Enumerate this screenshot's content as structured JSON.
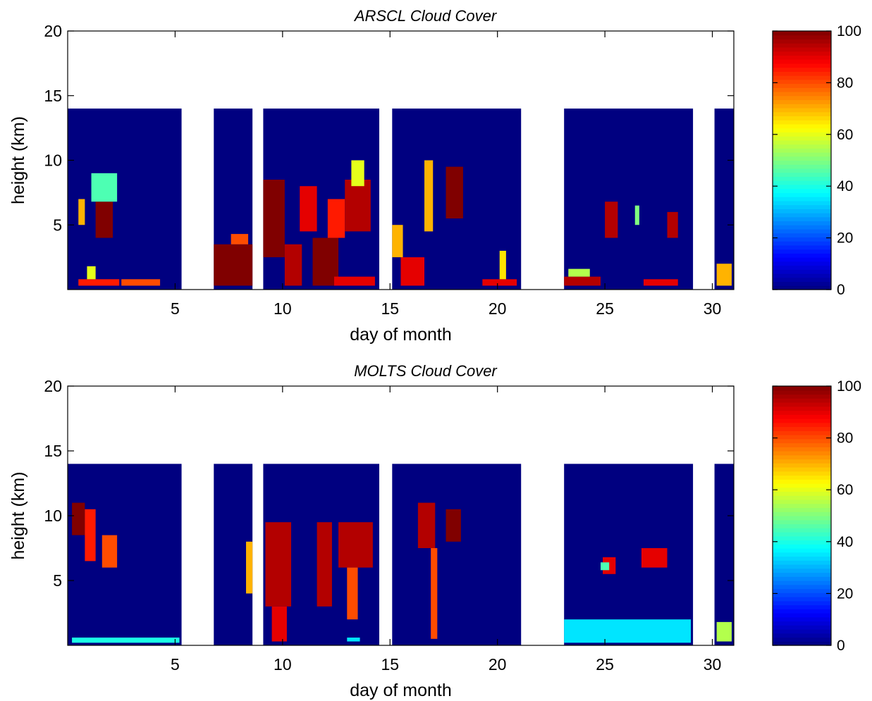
{
  "chart_data": [
    {
      "type": "heatmap",
      "title": "ARSCL Cloud Cover",
      "xlabel": "day of month",
      "ylabel": "height (km)",
      "xlim": [
        0,
        31
      ],
      "ylim": [
        0,
        20
      ],
      "xticks": [
        5,
        10,
        15,
        20,
        25,
        30
      ],
      "yticks": [
        5,
        10,
        15,
        20
      ],
      "grid": false,
      "colorbar": {
        "colormap": "jet",
        "range": [
          0,
          100
        ],
        "ticks": [
          0,
          20,
          40,
          60,
          80,
          100
        ]
      },
      "data_top_km": 14,
      "valid_day_ranges": [
        [
          0,
          5.3
        ],
        [
          6.8,
          8.6
        ],
        [
          9.1,
          14.5
        ],
        [
          15.1,
          21.1
        ],
        [
          23.1,
          29.1
        ],
        [
          30.1,
          31
        ]
      ],
      "background_value": 0,
      "cloud_patches": [
        {
          "day": [
            0.5,
            2.4
          ],
          "height": [
            0.3,
            0.8
          ],
          "value": 85
        },
        {
          "day": [
            2.5,
            4.3
          ],
          "height": [
            0.3,
            0.8
          ],
          "value": 80
        },
        {
          "day": [
            0.9,
            1.3
          ],
          "height": [
            0.8,
            1.8
          ],
          "value": 60
        },
        {
          "day": [
            1.3,
            2.1
          ],
          "height": [
            4.0,
            6.8
          ],
          "value": 100
        },
        {
          "day": [
            1.1,
            2.3
          ],
          "height": [
            6.8,
            9.0
          ],
          "value": 45
        },
        {
          "day": [
            0.5,
            0.8
          ],
          "height": [
            5.0,
            7.0
          ],
          "value": 70
        },
        {
          "day": [
            6.8,
            8.6
          ],
          "height": [
            0.3,
            3.5
          ],
          "value": 100
        },
        {
          "day": [
            7.6,
            8.4
          ],
          "height": [
            3.5,
            4.3
          ],
          "value": 80
        },
        {
          "day": [
            9.1,
            10.1
          ],
          "height": [
            2.5,
            8.5
          ],
          "value": 100
        },
        {
          "day": [
            10.1,
            10.9
          ],
          "height": [
            0.3,
            3.5
          ],
          "value": 95
        },
        {
          "day": [
            10.8,
            11.6
          ],
          "height": [
            4.5,
            8.0
          ],
          "value": 90
        },
        {
          "day": [
            11.4,
            12.6
          ],
          "height": [
            0.3,
            4.0
          ],
          "value": 100
        },
        {
          "day": [
            12.1,
            12.9
          ],
          "height": [
            4.0,
            7.0
          ],
          "value": 85
        },
        {
          "day": [
            12.9,
            14.1
          ],
          "height": [
            4.5,
            8.5
          ],
          "value": 95
        },
        {
          "day": [
            13.2,
            13.8
          ],
          "height": [
            8.0,
            10.0
          ],
          "value": 60
        },
        {
          "day": [
            12.4,
            14.3
          ],
          "height": [
            0.3,
            1.0
          ],
          "value": 90
        },
        {
          "day": [
            15.5,
            16.6
          ],
          "height": [
            0.3,
            2.5
          ],
          "value": 90
        },
        {
          "day": [
            15.1,
            15.6
          ],
          "height": [
            2.5,
            5.0
          ],
          "value": 70
        },
        {
          "day": [
            16.6,
            17.0
          ],
          "height": [
            4.5,
            10.0
          ],
          "value": 70
        },
        {
          "day": [
            17.6,
            18.4
          ],
          "height": [
            5.5,
            9.5
          ],
          "value": 100
        },
        {
          "day": [
            19.3,
            20.9
          ],
          "height": [
            0.3,
            0.8
          ],
          "value": 90
        },
        {
          "day": [
            20.1,
            20.4
          ],
          "height": [
            0.8,
            3.0
          ],
          "value": 65
        },
        {
          "day": [
            23.1,
            24.8
          ],
          "height": [
            0.3,
            1.0
          ],
          "value": 95
        },
        {
          "day": [
            23.3,
            24.3
          ],
          "height": [
            1.0,
            1.6
          ],
          "value": 55
        },
        {
          "day": [
            25.0,
            25.6
          ],
          "height": [
            4.0,
            6.8
          ],
          "value": 95
        },
        {
          "day": [
            26.8,
            28.4
          ],
          "height": [
            0.3,
            0.8
          ],
          "value": 90
        },
        {
          "day": [
            27.9,
            28.4
          ],
          "height": [
            4.0,
            6.0
          ],
          "value": 95
        },
        {
          "day": [
            26.4,
            26.6
          ],
          "height": [
            5.0,
            6.5
          ],
          "value": 50
        },
        {
          "day": [
            30.2,
            30.9
          ],
          "height": [
            0.3,
            2.0
          ],
          "value": 70
        }
      ]
    },
    {
      "type": "heatmap",
      "title": "MOLTS Cloud Cover",
      "xlabel": "day of month",
      "ylabel": "height (km)",
      "xlim": [
        0,
        31
      ],
      "ylim": [
        0,
        20
      ],
      "xticks": [
        5,
        10,
        15,
        20,
        25,
        30
      ],
      "yticks": [
        5,
        10,
        15,
        20
      ],
      "grid": false,
      "colorbar": {
        "colormap": "jet",
        "range": [
          0,
          100
        ],
        "ticks": [
          0,
          20,
          40,
          60,
          80,
          100
        ]
      },
      "data_top_km": 14,
      "valid_day_ranges": [
        [
          0,
          5.3
        ],
        [
          6.8,
          8.6
        ],
        [
          9.1,
          14.5
        ],
        [
          15.1,
          21.1
        ],
        [
          23.1,
          29.1
        ],
        [
          30.1,
          31
        ]
      ],
      "background_value": 0,
      "cloud_patches": [
        {
          "day": [
            0.2,
            0.8
          ],
          "height": [
            8.5,
            11.0
          ],
          "value": 100
        },
        {
          "day": [
            0.8,
            1.3
          ],
          "height": [
            6.5,
            10.5
          ],
          "value": 85
        },
        {
          "day": [
            1.6,
            2.3
          ],
          "height": [
            6.0,
            8.5
          ],
          "value": 80
        },
        {
          "day": [
            0.2,
            5.2
          ],
          "height": [
            0.2,
            0.6
          ],
          "value": 40
        },
        {
          "day": [
            8.3,
            8.6
          ],
          "height": [
            4.0,
            8.0
          ],
          "value": 70
        },
        {
          "day": [
            9.2,
            10.4
          ],
          "height": [
            3.0,
            9.5
          ],
          "value": 95
        },
        {
          "day": [
            9.5,
            10.2
          ],
          "height": [
            0.3,
            3.0
          ],
          "value": 90
        },
        {
          "day": [
            11.6,
            12.3
          ],
          "height": [
            3.0,
            9.5
          ],
          "value": 95
        },
        {
          "day": [
            12.6,
            14.2
          ],
          "height": [
            6.0,
            9.5
          ],
          "value": 95
        },
        {
          "day": [
            13.0,
            13.5
          ],
          "height": [
            2.0,
            6.0
          ],
          "value": 80
        },
        {
          "day": [
            13.0,
            13.6
          ],
          "height": [
            0.3,
            0.6
          ],
          "value": 35
        },
        {
          "day": [
            16.3,
            17.1
          ],
          "height": [
            7.5,
            11.0
          ],
          "value": 95
        },
        {
          "day": [
            17.6,
            18.3
          ],
          "height": [
            8.0,
            10.5
          ],
          "value": 100
        },
        {
          "day": [
            16.9,
            17.2
          ],
          "height": [
            0.5,
            7.5
          ],
          "value": 80
        },
        {
          "day": [
            23.1,
            29.0
          ],
          "height": [
            0.2,
            2.0
          ],
          "value": 35
        },
        {
          "day": [
            24.9,
            25.5
          ],
          "height": [
            5.5,
            6.8
          ],
          "value": 90
        },
        {
          "day": [
            24.8,
            25.2
          ],
          "height": [
            5.8,
            6.4
          ],
          "value": 45
        },
        {
          "day": [
            26.7,
            27.9
          ],
          "height": [
            6.0,
            7.5
          ],
          "value": 90
        },
        {
          "day": [
            30.2,
            30.9
          ],
          "height": [
            0.3,
            1.8
          ],
          "value": 55
        }
      ]
    }
  ]
}
